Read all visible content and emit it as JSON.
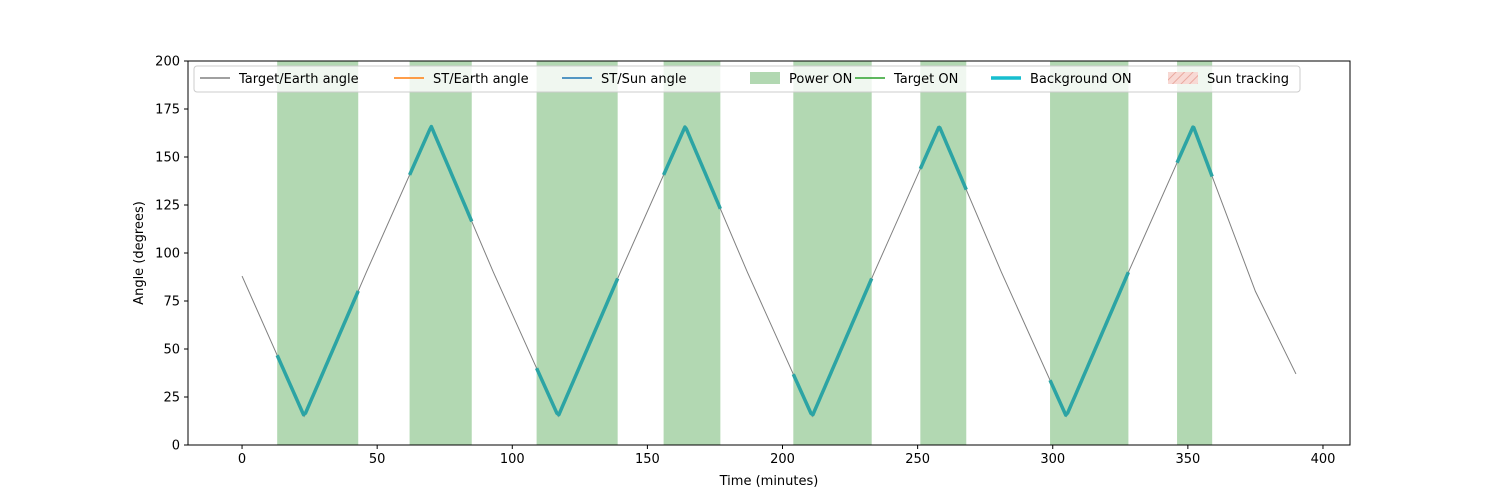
{
  "chart_data": {
    "type": "line",
    "title": "",
    "xlabel": "Time (minutes)",
    "ylabel": "Angle (degrees)",
    "xlim": [
      -20,
      410
    ],
    "ylim": [
      0,
      200
    ],
    "x_ticks": [
      0,
      50,
      100,
      150,
      200,
      250,
      300,
      350,
      400
    ],
    "y_ticks": [
      0,
      25,
      50,
      75,
      100,
      125,
      150,
      175,
      200
    ],
    "grid": false,
    "legend_placement": "top, single row",
    "legend": [
      {
        "label": "Target/Earth angle",
        "kind": "line",
        "color": "#808080"
      },
      {
        "label": "ST/Earth angle",
        "kind": "line",
        "color": "#ff7f0e"
      },
      {
        "label": "ST/Sun angle",
        "kind": "line",
        "color": "#1f77b4"
      },
      {
        "label": "Power ON",
        "kind": "patch",
        "color": "#b2d8b2"
      },
      {
        "label": "Target ON",
        "kind": "line",
        "color": "#2ca02c"
      },
      {
        "label": "Background ON",
        "kind": "thick-line",
        "color": "#17becf"
      },
      {
        "label": "Sun tracking",
        "kind": "hatched-patch",
        "color": "#f4c6c0"
      }
    ],
    "series": [
      {
        "name": "Target/Earth angle",
        "color": "#808080",
        "points": [
          [
            0,
            88
          ],
          [
            23,
            15
          ],
          [
            46,
            90
          ],
          [
            70,
            166
          ],
          [
            93,
            90
          ],
          [
            117,
            15
          ],
          [
            140,
            90
          ],
          [
            164,
            166
          ],
          [
            187,
            90
          ],
          [
            211,
            15
          ],
          [
            234,
            90
          ],
          [
            258,
            166
          ],
          [
            281,
            90
          ],
          [
            305,
            15
          ],
          [
            328,
            90
          ],
          [
            352,
            166
          ],
          [
            375,
            80
          ],
          [
            390,
            37
          ]
        ]
      },
      {
        "name": "Background ON",
        "color": "#2ca4a4",
        "segments": [
          [
            13,
            43
          ],
          [
            62,
            85
          ],
          [
            109,
            139
          ],
          [
            156,
            177
          ],
          [
            204,
            233
          ],
          [
            251,
            268
          ],
          [
            299,
            328
          ],
          [
            346,
            359
          ]
        ]
      }
    ],
    "power_on_intervals": [
      [
        13,
        43
      ],
      [
        62,
        85
      ],
      [
        109,
        139
      ],
      [
        156,
        177
      ],
      [
        204,
        233
      ],
      [
        251,
        268
      ],
      [
        299,
        328
      ],
      [
        346,
        359
      ]
    ]
  }
}
